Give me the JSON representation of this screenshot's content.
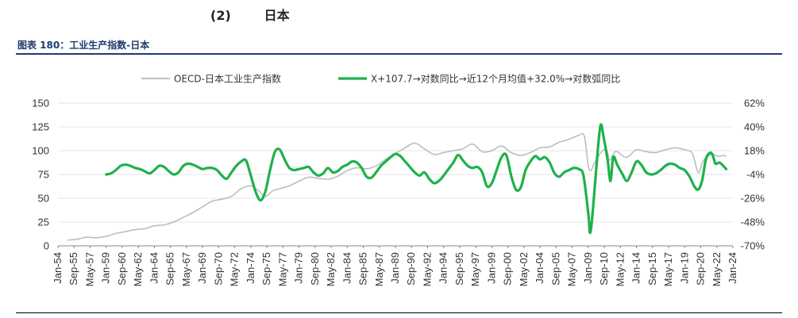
{
  "section": {
    "number": "(2)",
    "title": "日本"
  },
  "figure_title": "图表 180：工业生产指数-日本",
  "colors": {
    "oecd": "#bdbdbd",
    "yoy": "#1db24a",
    "title": "#1f3b6e"
  },
  "chart_data": {
    "type": "line",
    "title": "",
    "xlabel": "",
    "ylabel": "",
    "x_ticks": [
      "Jan-54",
      "Sep-55",
      "May-57",
      "Jan-59",
      "Sep-60",
      "May-62",
      "Jan-64",
      "Sep-65",
      "May-67",
      "Jan-69",
      "Sep-70",
      "May-72",
      "Jan-74",
      "Sep-75",
      "May-77",
      "Jan-79",
      "Sep-80",
      "May-82",
      "Jan-84",
      "Sep-85",
      "May-87",
      "Jan-89",
      "Sep-90",
      "May-92",
      "Jan-94",
      "Sep-95",
      "May-97",
      "Jan-99",
      "Sep-00",
      "May-02",
      "Jan-04",
      "Sep-05",
      "May-07",
      "Jan-09",
      "Sep-10",
      "May-12",
      "Jan-14",
      "Sep-15",
      "May-17",
      "Jan-19",
      "Sep-20",
      "May-22",
      "Jan-24"
    ],
    "y_left": {
      "min": 0,
      "max": 150,
      "ticks": [
        "0",
        "25",
        "50",
        "75",
        "100",
        "125",
        "150"
      ]
    },
    "y_right": {
      "min": -70,
      "max": 62,
      "ticks": [
        "-70%",
        "-48%",
        "-26%",
        "-4%",
        "18%",
        "40%",
        "62%"
      ]
    },
    "grid": true,
    "legend_position": "top",
    "series": [
      {
        "name": "OECD-日本工业生产指数",
        "axis": "left",
        "points": [
          [
            1955.0,
            6
          ],
          [
            1956.0,
            7
          ],
          [
            1957.0,
            9
          ],
          [
            1958.0,
            8.5
          ],
          [
            1959.0,
            10
          ],
          [
            1960.0,
            13
          ],
          [
            1961.0,
            15
          ],
          [
            1962.0,
            17
          ],
          [
            1963.0,
            18
          ],
          [
            1964.0,
            21
          ],
          [
            1965.0,
            22
          ],
          [
            1966.0,
            25
          ],
          [
            1967.0,
            30
          ],
          [
            1968.0,
            35
          ],
          [
            1969.0,
            41
          ],
          [
            1970.0,
            47
          ],
          [
            1971.0,
            49
          ],
          [
            1972.0,
            52
          ],
          [
            1973.0,
            60
          ],
          [
            1974.0,
            63
          ],
          [
            1974.8,
            58
          ],
          [
            1975.5,
            52
          ],
          [
            1976.3,
            58
          ],
          [
            1977.0,
            60
          ],
          [
            1978.0,
            63
          ],
          [
            1979.0,
            68
          ],
          [
            1980.0,
            72
          ],
          [
            1981.0,
            71
          ],
          [
            1982.0,
            70
          ],
          [
            1983.0,
            73
          ],
          [
            1984.0,
            79
          ],
          [
            1985.0,
            82
          ],
          [
            1986.0,
            81
          ],
          [
            1987.0,
            84
          ],
          [
            1988.0,
            91
          ],
          [
            1989.0,
            97
          ],
          [
            1990.0,
            103
          ],
          [
            1991.0,
            108
          ],
          [
            1992.0,
            102
          ],
          [
            1993.0,
            96
          ],
          [
            1994.0,
            98
          ],
          [
            1995.0,
            100
          ],
          [
            1996.0,
            102
          ],
          [
            1997.0,
            107
          ],
          [
            1998.0,
            99
          ],
          [
            1999.0,
            100
          ],
          [
            2000.0,
            105
          ],
          [
            2001.0,
            98
          ],
          [
            2002.0,
            95
          ],
          [
            2003.0,
            98
          ],
          [
            2004.0,
            103
          ],
          [
            2005.0,
            104
          ],
          [
            2006.0,
            109
          ],
          [
            2007.0,
            112
          ],
          [
            2008.0,
            116
          ],
          [
            2008.6,
            115
          ],
          [
            2009.1,
            80
          ],
          [
            2009.7,
            88
          ],
          [
            2010.3,
            98
          ],
          [
            2010.9,
            101
          ],
          [
            2011.2,
            90
          ],
          [
            2011.7,
            98
          ],
          [
            2012.0,
            99
          ],
          [
            2012.8,
            93
          ],
          [
            2013.3,
            95
          ],
          [
            2014.0,
            101
          ],
          [
            2015.0,
            99
          ],
          [
            2016.0,
            98
          ],
          [
            2017.0,
            101
          ],
          [
            2018.0,
            103
          ],
          [
            2019.0,
            101
          ],
          [
            2019.8,
            97
          ],
          [
            2020.4,
            77
          ],
          [
            2020.9,
            89
          ],
          [
            2021.5,
            95
          ],
          [
            2022.0,
            96
          ],
          [
            2022.5,
            94
          ],
          [
            2023.0,
            95
          ],
          [
            2023.3,
            94
          ]
        ]
      },
      {
        "name": "X+107.7→对数同比→近12个月均值+32.0%→对数弧同比",
        "axis": "right",
        "points": [
          [
            1959.0,
            -4
          ],
          [
            1959.5,
            -3
          ],
          [
            1960.0,
            0
          ],
          [
            1960.5,
            4
          ],
          [
            1961.0,
            5
          ],
          [
            1961.5,
            4
          ],
          [
            1962.0,
            2
          ],
          [
            1962.5,
            1
          ],
          [
            1963.0,
            -1
          ],
          [
            1963.5,
            -3
          ],
          [
            1964.0,
            0
          ],
          [
            1964.5,
            4
          ],
          [
            1965.0,
            3
          ],
          [
            1965.5,
            -1
          ],
          [
            1966.0,
            -4
          ],
          [
            1966.5,
            -2
          ],
          [
            1967.0,
            4
          ],
          [
            1967.5,
            6
          ],
          [
            1968.0,
            5
          ],
          [
            1968.5,
            3
          ],
          [
            1969.0,
            1
          ],
          [
            1969.5,
            2
          ],
          [
            1970.0,
            2
          ],
          [
            1970.5,
            0
          ],
          [
            1971.0,
            -5
          ],
          [
            1971.5,
            -8
          ],
          [
            1972.0,
            -2
          ],
          [
            1972.5,
            4
          ],
          [
            1973.0,
            8
          ],
          [
            1973.5,
            9
          ],
          [
            1974.0,
            -5
          ],
          [
            1974.5,
            -20
          ],
          [
            1975.0,
            -28
          ],
          [
            1975.5,
            -20
          ],
          [
            1976.0,
            0
          ],
          [
            1976.5,
            17
          ],
          [
            1977.0,
            19
          ],
          [
            1977.5,
            10
          ],
          [
            1978.0,
            2
          ],
          [
            1978.5,
            0
          ],
          [
            1979.0,
            1
          ],
          [
            1979.5,
            2
          ],
          [
            1980.0,
            3
          ],
          [
            1980.5,
            -2
          ],
          [
            1981.0,
            -5
          ],
          [
            1981.5,
            -3
          ],
          [
            1982.0,
            2
          ],
          [
            1982.5,
            -2
          ],
          [
            1983.0,
            -1
          ],
          [
            1983.5,
            3
          ],
          [
            1984.0,
            5
          ],
          [
            1984.5,
            8
          ],
          [
            1985.0,
            7
          ],
          [
            1985.5,
            2
          ],
          [
            1986.0,
            -6
          ],
          [
            1986.5,
            -7
          ],
          [
            1987.0,
            -2
          ],
          [
            1987.5,
            4
          ],
          [
            1988.0,
            8
          ],
          [
            1988.5,
            12
          ],
          [
            1989.0,
            15
          ],
          [
            1989.5,
            13
          ],
          [
            1990.0,
            8
          ],
          [
            1990.5,
            3
          ],
          [
            1991.0,
            -2
          ],
          [
            1991.5,
            -5
          ],
          [
            1992.0,
            -2
          ],
          [
            1992.5,
            -8
          ],
          [
            1993.0,
            -12
          ],
          [
            1993.5,
            -10
          ],
          [
            1994.0,
            -5
          ],
          [
            1994.5,
            1
          ],
          [
            1995.0,
            7
          ],
          [
            1995.5,
            14
          ],
          [
            1996.0,
            9
          ],
          [
            1996.5,
            4
          ],
          [
            1997.0,
            2
          ],
          [
            1997.5,
            3
          ],
          [
            1998.0,
            -2
          ],
          [
            1998.5,
            -15
          ],
          [
            1999.0,
            -12
          ],
          [
            1999.5,
            0
          ],
          [
            2000.0,
            12
          ],
          [
            2000.5,
            14
          ],
          [
            2001.0,
            -5
          ],
          [
            2001.5,
            -18
          ],
          [
            2002.0,
            -16
          ],
          [
            2002.5,
            0
          ],
          [
            2003.0,
            8
          ],
          [
            2003.5,
            13
          ],
          [
            2004.0,
            10
          ],
          [
            2004.5,
            12
          ],
          [
            2005.0,
            7
          ],
          [
            2005.5,
            -3
          ],
          [
            2006.0,
            -6
          ],
          [
            2006.5,
            -2
          ],
          [
            2007.0,
            0
          ],
          [
            2007.5,
            2
          ],
          [
            2008.0,
            1
          ],
          [
            2008.5,
            -5
          ],
          [
            2009.0,
            -40
          ],
          [
            2009.2,
            -58
          ],
          [
            2009.5,
            -35
          ],
          [
            2010.0,
            20
          ],
          [
            2010.3,
            42
          ],
          [
            2010.6,
            30
          ],
          [
            2011.0,
            10
          ],
          [
            2011.3,
            -10
          ],
          [
            2011.6,
            12
          ],
          [
            2012.0,
            5
          ],
          [
            2012.5,
            -3
          ],
          [
            2013.0,
            -10
          ],
          [
            2013.5,
            -2
          ],
          [
            2014.0,
            8
          ],
          [
            2014.5,
            5
          ],
          [
            2015.0,
            -2
          ],
          [
            2015.5,
            -4
          ],
          [
            2016.0,
            -3
          ],
          [
            2016.5,
            0
          ],
          [
            2017.0,
            4
          ],
          [
            2017.5,
            6
          ],
          [
            2018.0,
            5
          ],
          [
            2018.5,
            2
          ],
          [
            2019.0,
            0
          ],
          [
            2019.5,
            -6
          ],
          [
            2020.0,
            -15
          ],
          [
            2020.4,
            -18
          ],
          [
            2020.8,
            -10
          ],
          [
            2021.2,
            10
          ],
          [
            2021.6,
            16
          ],
          [
            2021.9,
            14
          ],
          [
            2022.2,
            6
          ],
          [
            2022.6,
            7
          ],
          [
            2023.0,
            4
          ],
          [
            2023.3,
            1
          ]
        ]
      }
    ]
  }
}
